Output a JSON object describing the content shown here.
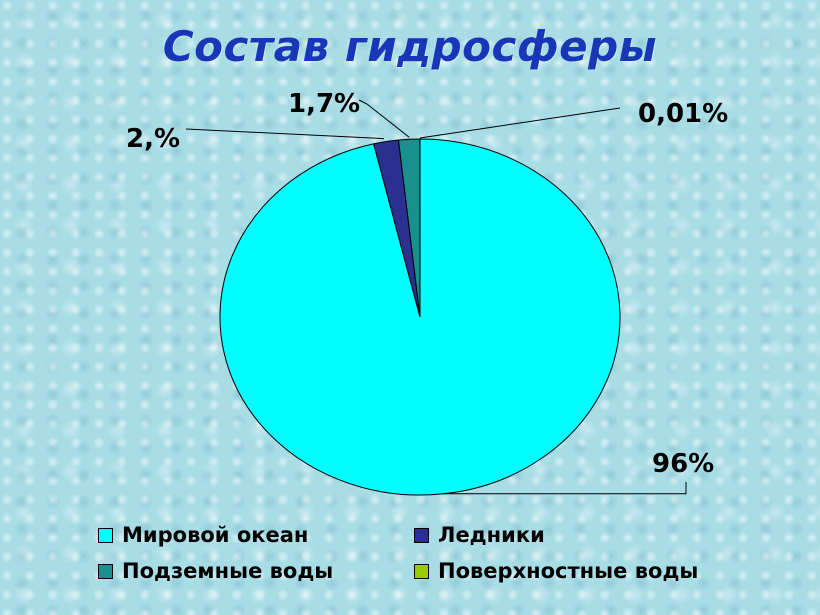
{
  "title": "Состав гидросферы",
  "chart_data": {
    "type": "pie",
    "title": "Состав гидросферы",
    "categories": [
      "Мировой океан",
      "Ледники",
      "Подземные воды",
      "Поверхностные воды"
    ],
    "values": [
      96,
      2,
      1.7,
      0.01
    ],
    "data_labels": [
      "96%",
      "2,%",
      "1,7%",
      "0,01%"
    ],
    "colors": [
      "#00ffff",
      "#2b2f8f",
      "#1a8f8f",
      "#99cc00"
    ],
    "legend_position": "bottom"
  }
}
